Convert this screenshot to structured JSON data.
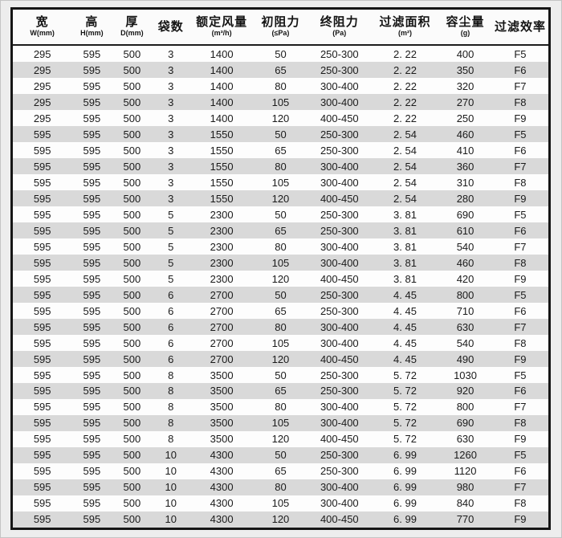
{
  "page": {
    "background_color": "#ededed",
    "border_color": "#161616",
    "stripe_color": "#d9d9d9"
  },
  "table": {
    "columns": [
      {
        "label": "宽",
        "sub": "W(mm)"
      },
      {
        "label": "高",
        "sub": "H(mm)"
      },
      {
        "label": "厚",
        "sub": "D(mm)"
      },
      {
        "label": "袋数",
        "sub": ""
      },
      {
        "label": "额定风量",
        "sub": "(m³/h)"
      },
      {
        "label": "初阻力",
        "sub": "(≤Pa)"
      },
      {
        "label": "终阻力",
        "sub": "(Pa)"
      },
      {
        "label": "过滤面积",
        "sub": "(m²)"
      },
      {
        "label": "容尘量",
        "sub": "(g)"
      },
      {
        "label": "过滤效率",
        "sub": ""
      }
    ],
    "rows": [
      [
        "295",
        "595",
        "500",
        "3",
        "1400",
        "50",
        "250-300",
        "2. 22",
        "400",
        "F5"
      ],
      [
        "295",
        "595",
        "500",
        "3",
        "1400",
        "65",
        "250-300",
        "2. 22",
        "350",
        "F6"
      ],
      [
        "295",
        "595",
        "500",
        "3",
        "1400",
        "80",
        "300-400",
        "2. 22",
        "320",
        "F7"
      ],
      [
        "295",
        "595",
        "500",
        "3",
        "1400",
        "105",
        "300-400",
        "2. 22",
        "270",
        "F8"
      ],
      [
        "295",
        "595",
        "500",
        "3",
        "1400",
        "120",
        "400-450",
        "2. 22",
        "250",
        "F9"
      ],
      [
        "595",
        "595",
        "500",
        "3",
        "1550",
        "50",
        "250-300",
        "2. 54",
        "460",
        "F5"
      ],
      [
        "595",
        "595",
        "500",
        "3",
        "1550",
        "65",
        "250-300",
        "2. 54",
        "410",
        "F6"
      ],
      [
        "595",
        "595",
        "500",
        "3",
        "1550",
        "80",
        "300-400",
        "2. 54",
        "360",
        "F7"
      ],
      [
        "595",
        "595",
        "500",
        "3",
        "1550",
        "105",
        "300-400",
        "2. 54",
        "310",
        "F8"
      ],
      [
        "595",
        "595",
        "500",
        "3",
        "1550",
        "120",
        "400-450",
        "2. 54",
        "280",
        "F9"
      ],
      [
        "595",
        "595",
        "500",
        "5",
        "2300",
        "50",
        "250-300",
        "3. 81",
        "690",
        "F5"
      ],
      [
        "595",
        "595",
        "500",
        "5",
        "2300",
        "65",
        "250-300",
        "3. 81",
        "610",
        "F6"
      ],
      [
        "595",
        "595",
        "500",
        "5",
        "2300",
        "80",
        "300-400",
        "3. 81",
        "540",
        "F7"
      ],
      [
        "595",
        "595",
        "500",
        "5",
        "2300",
        "105",
        "300-400",
        "3. 81",
        "460",
        "F8"
      ],
      [
        "595",
        "595",
        "500",
        "5",
        "2300",
        "120",
        "400-450",
        "3. 81",
        "420",
        "F9"
      ],
      [
        "595",
        "595",
        "500",
        "6",
        "2700",
        "50",
        "250-300",
        "4. 45",
        "800",
        "F5"
      ],
      [
        "595",
        "595",
        "500",
        "6",
        "2700",
        "65",
        "250-300",
        "4. 45",
        "710",
        "F6"
      ],
      [
        "595",
        "595",
        "500",
        "6",
        "2700",
        "80",
        "300-400",
        "4. 45",
        "630",
        "F7"
      ],
      [
        "595",
        "595",
        "500",
        "6",
        "2700",
        "105",
        "300-400",
        "4. 45",
        "540",
        "F8"
      ],
      [
        "595",
        "595",
        "500",
        "6",
        "2700",
        "120",
        "400-450",
        "4. 45",
        "490",
        "F9"
      ],
      [
        "595",
        "595",
        "500",
        "8",
        "3500",
        "50",
        "250-300",
        "5. 72",
        "1030",
        "F5"
      ],
      [
        "595",
        "595",
        "500",
        "8",
        "3500",
        "65",
        "250-300",
        "5. 72",
        "920",
        "F6"
      ],
      [
        "595",
        "595",
        "500",
        "8",
        "3500",
        "80",
        "300-400",
        "5. 72",
        "800",
        "F7"
      ],
      [
        "595",
        "595",
        "500",
        "8",
        "3500",
        "105",
        "300-400",
        "5. 72",
        "690",
        "F8"
      ],
      [
        "595",
        "595",
        "500",
        "8",
        "3500",
        "120",
        "400-450",
        "5. 72",
        "630",
        "F9"
      ],
      [
        "595",
        "595",
        "500",
        "10",
        "4300",
        "50",
        "250-300",
        "6. 99",
        "1260",
        "F5"
      ],
      [
        "595",
        "595",
        "500",
        "10",
        "4300",
        "65",
        "250-300",
        "6. 99",
        "1120",
        "F6"
      ],
      [
        "595",
        "595",
        "500",
        "10",
        "4300",
        "80",
        "300-400",
        "6. 99",
        "980",
        "F7"
      ],
      [
        "595",
        "595",
        "500",
        "10",
        "4300",
        "105",
        "300-400",
        "6. 99",
        "840",
        "F8"
      ],
      [
        "595",
        "595",
        "500",
        "10",
        "4300",
        "120",
        "400-450",
        "6. 99",
        "770",
        "F9"
      ]
    ]
  }
}
